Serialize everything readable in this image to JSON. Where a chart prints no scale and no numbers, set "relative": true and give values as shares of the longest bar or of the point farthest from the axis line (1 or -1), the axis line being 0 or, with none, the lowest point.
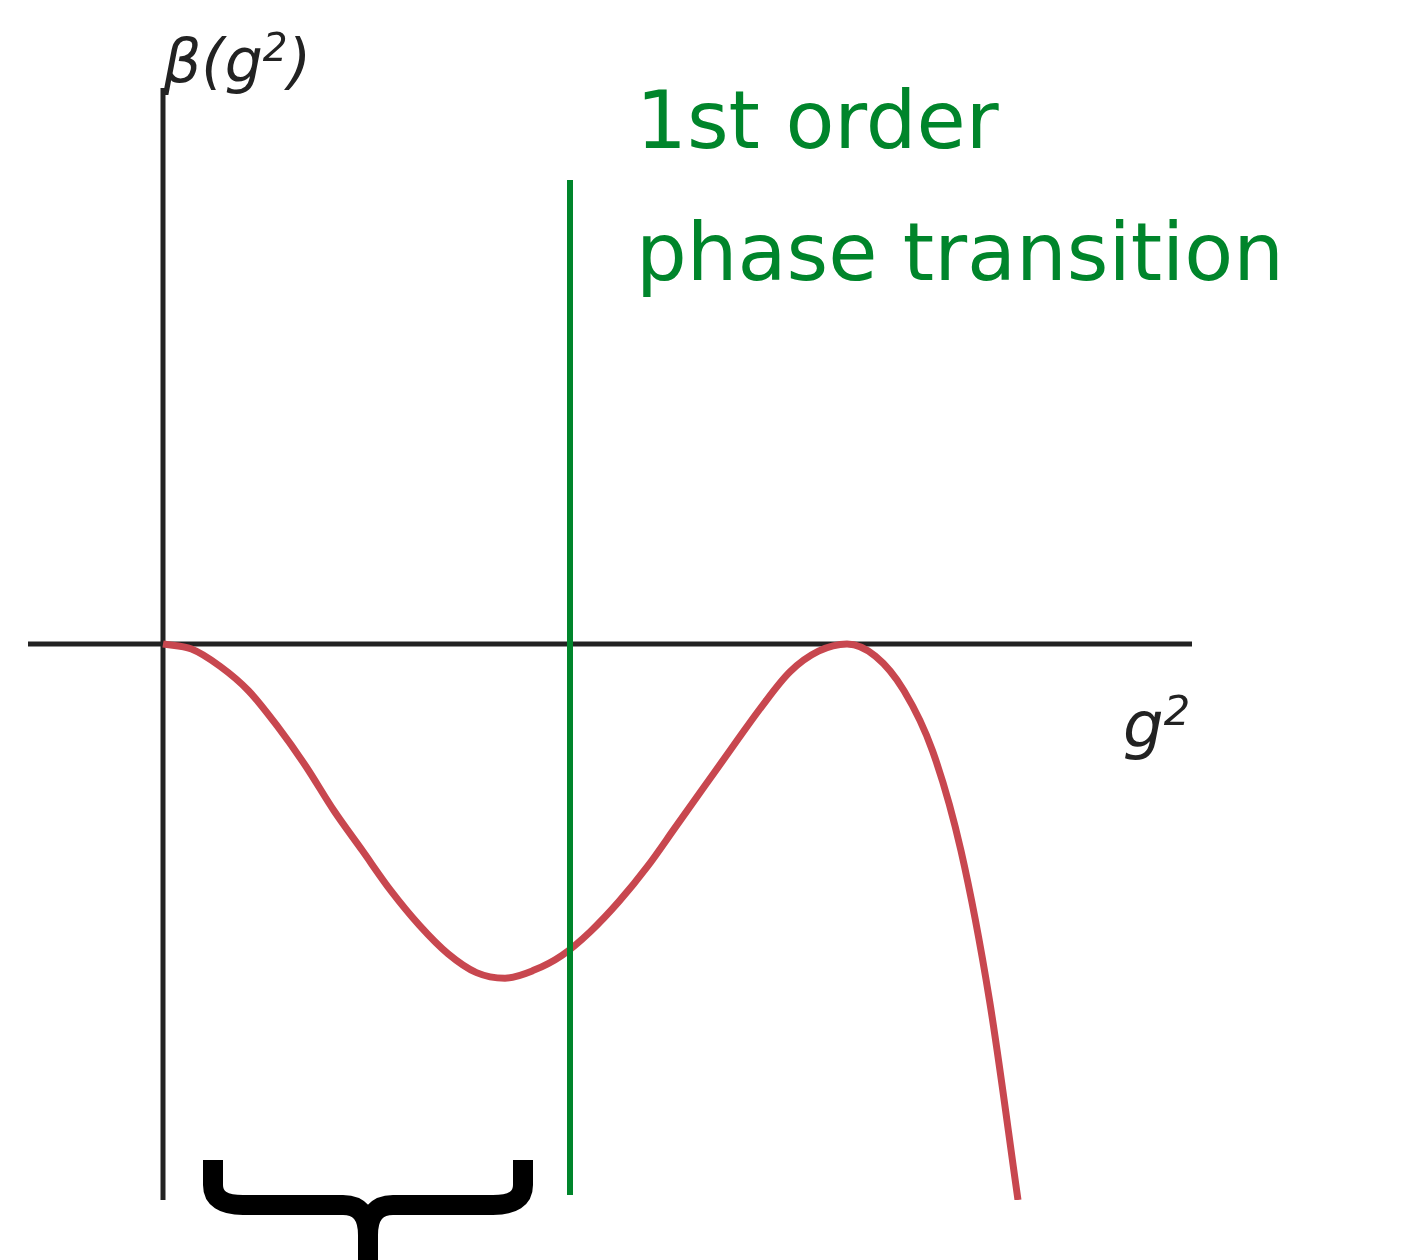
{
  "chart_data": {
    "type": "line",
    "relative": true,
    "xlabel": "g$^{2}$",
    "annotations": [
      "β(g$^{2}$)",
      "1st order\nphase transition"
    ],
    "categories": [
      null,
      null,
      null,
      null,
      null,
      null,
      null,
      null,
      null,
      null,
      null,
      null,
      null,
      null,
      null,
      null,
      null,
      null,
      null,
      null,
      null,
      null,
      null,
      null,
      null,
      null,
      null,
      null,
      null,
      null,
      null
    ],
    "values": [
      0,
      -0.009,
      -0.04,
      -0.084,
      -0.147,
      -0.219,
      -0.3,
      -0.372,
      -0.444,
      -0.506,
      -0.557,
      -0.591,
      -0.601,
      -0.587,
      -0.56,
      -0.517,
      -0.463,
      -0.4,
      -0.328,
      -0.256,
      -0.184,
      -0.113,
      -0.05,
      -0.013,
      0,
      -0.022,
      -0.084,
      -0.192,
      -0.372,
      -0.641,
      -1
    ],
    "color": "#c8474f"
  }
}
